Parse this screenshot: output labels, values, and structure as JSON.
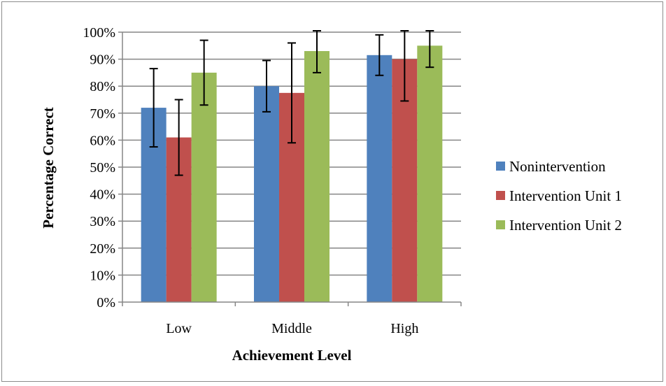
{
  "chart_data": {
    "type": "bar",
    "title": "",
    "xlabel": "Achievement Level",
    "ylabel": "Percentage Correct",
    "categories": [
      "Low",
      "Middle",
      "High"
    ],
    "ylim": [
      0,
      100
    ],
    "ytick_step": 10,
    "yticks": [
      "0%",
      "10%",
      "20%",
      "30%",
      "40%",
      "50%",
      "60%",
      "70%",
      "80%",
      "90%",
      "100%"
    ],
    "grid": true,
    "legend_position": "right",
    "series": [
      {
        "name": "Nonintervention",
        "color": "#4F81BD",
        "values": [
          72,
          80,
          91.5
        ],
        "error": [
          14.5,
          9.5,
          7.5
        ]
      },
      {
        "name": "Intervention Unit 1",
        "color": "#C0504D",
        "values": [
          61,
          77.5,
          90
        ],
        "error": [
          14,
          18.5,
          15.5
        ]
      },
      {
        "name": "Intervention Unit 2",
        "color": "#9BBB59",
        "values": [
          85,
          93,
          95
        ],
        "error": [
          12,
          8,
          8
        ]
      }
    ]
  }
}
